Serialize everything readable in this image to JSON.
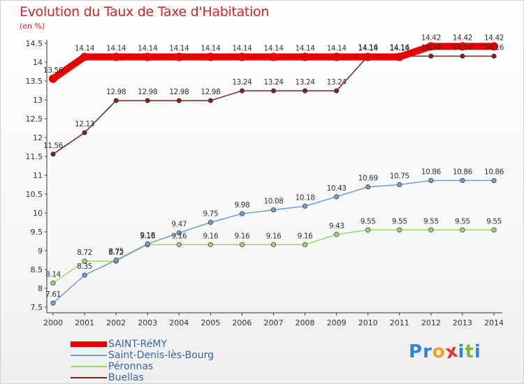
{
  "header": {
    "title": "Evolution du Taux de Taxe d'Habitation",
    "subtitle": "(en %)"
  },
  "logo": {
    "letters": [
      "P",
      "r",
      "o",
      "x",
      "i",
      "t",
      "i"
    ],
    "colors": [
      "#2e86d6",
      "#2e86d6",
      "#f2a11a",
      "#e8362c",
      "#2e86d6",
      "#82b838",
      "#2e86d6"
    ]
  },
  "chart_data": {
    "type": "line",
    "title": "Evolution du Taux de Taxe d'Habitation",
    "subtitle": "(en %)",
    "x": [
      "2000",
      "2001",
      "2002",
      "2003",
      "2004",
      "2005",
      "2006",
      "2007",
      "2008",
      "2009",
      "2010",
      "2011",
      "2012",
      "2013",
      "2014"
    ],
    "ylim": [
      7.5,
      14.5
    ],
    "yticks": [
      "7.5",
      "8",
      "8.5",
      "9",
      "9.5",
      "10",
      "10.5",
      "11",
      "11.5",
      "12",
      "12.5",
      "13",
      "13.5",
      "14",
      "14.5"
    ],
    "grid": false,
    "legend_position": "bottom-left",
    "series": [
      {
        "name": "SAINT-RéMY",
        "color": "#e60000",
        "values": [
          13.56,
          14.14,
          14.14,
          14.14,
          14.14,
          14.14,
          14.14,
          14.14,
          14.14,
          14.14,
          14.14,
          14.14,
          14.42,
          14.42,
          14.42
        ],
        "labels": [
          "13.56",
          "14.14",
          "14.14",
          "14.14",
          "14.14",
          "14.14",
          "14.14",
          "14.14",
          "14.14",
          "14.14",
          "14.14",
          "14.14",
          "14.42",
          "14.42",
          "14.42"
        ]
      },
      {
        "name": "Saint-Denis-lès-Bourg",
        "color": "#6f9fd1",
        "values": [
          7.61,
          8.35,
          8.75,
          9.18,
          9.47,
          9.75,
          9.98,
          10.08,
          10.18,
          10.43,
          10.69,
          10.75,
          10.86,
          10.86,
          10.86
        ],
        "labels": [
          "7.61",
          "8.35",
          "8.75",
          "9.18",
          "9.47",
          "9.75",
          "9.98",
          "10.08",
          "10.18",
          "10.43",
          "10.69",
          "10.75",
          "10.86",
          "10.86",
          "10.86"
        ]
      },
      {
        "name": "Péronnas",
        "color": "#99d96b",
        "values": [
          8.14,
          8.72,
          8.72,
          9.16,
          9.16,
          9.16,
          9.16,
          9.16,
          9.16,
          9.43,
          9.55,
          9.55,
          9.55,
          9.55,
          9.55
        ],
        "labels": [
          "8.14",
          "8.72",
          "8.72",
          "9.16",
          "9.16",
          "9.16",
          "9.16",
          "9.16",
          "9.16",
          "9.43",
          "9.55",
          "9.55",
          "9.55",
          "9.55",
          "9.55"
        ]
      },
      {
        "name": "Buellas",
        "color": "#7a2020",
        "values": [
          11.56,
          12.13,
          12.98,
          12.98,
          12.98,
          12.98,
          13.24,
          13.24,
          13.24,
          13.24,
          14.16,
          14.16,
          14.16,
          14.16,
          14.16
        ],
        "labels": [
          "11.56",
          "12.13",
          "12.98",
          "12.98",
          "12.98",
          "12.98",
          "13.24",
          "13.24",
          "13.24",
          "13.24",
          "14.16",
          "14.16",
          "14.16",
          "14.16",
          "14.16"
        ]
      }
    ]
  }
}
